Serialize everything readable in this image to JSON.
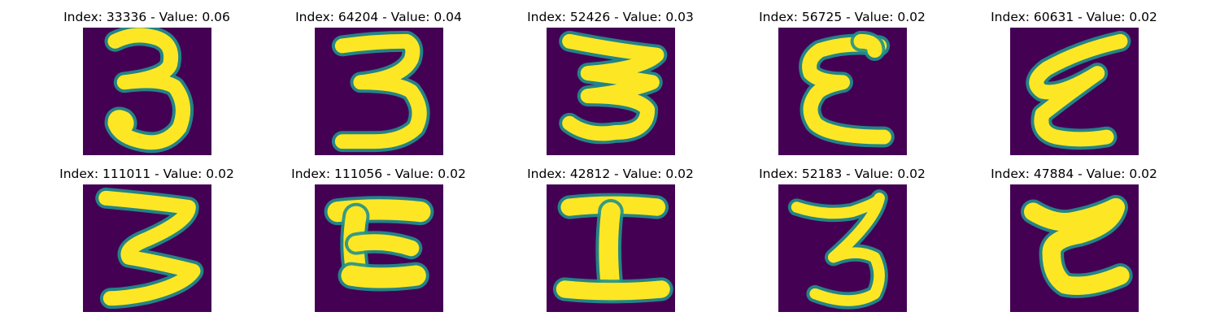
{
  "colors": {
    "background": "#440154",
    "stroke_mid": "#21918c",
    "stroke_core": "#fde725"
  },
  "panels": [
    {
      "title": "Index: 33336 - Value: 0.06",
      "glyph": "three-icon"
    },
    {
      "title": "Index: 64204 - Value: 0.04",
      "glyph": "three-icon"
    },
    {
      "title": "Index: 52426 - Value: 0.03",
      "glyph": "three-icon"
    },
    {
      "title": "Index: 56725 - Value: 0.02",
      "glyph": "epsilon-icon"
    },
    {
      "title": "Index: 60631 - Value: 0.02",
      "glyph": "epsilon-icon"
    },
    {
      "title": "Index: 111011 - Value: 0.02",
      "glyph": "three-icon"
    },
    {
      "title": "Index: 111056 - Value: 0.02",
      "glyph": "z-shape-icon"
    },
    {
      "title": "Index: 42812 - Value: 0.02",
      "glyph": "i-shape-icon"
    },
    {
      "title": "Index: 52183 - Value: 0.02",
      "glyph": "three-icon"
    },
    {
      "title": "Index: 47884 - Value: 0.02",
      "glyph": "e-shape-icon"
    }
  ]
}
